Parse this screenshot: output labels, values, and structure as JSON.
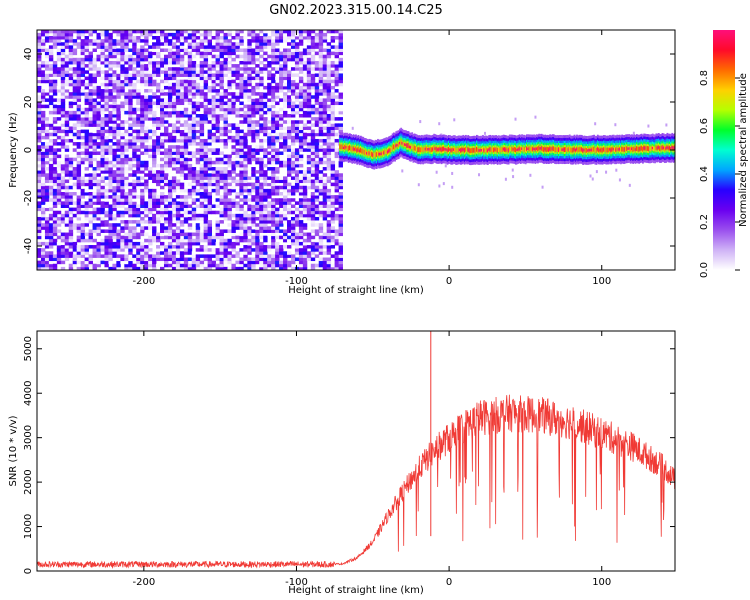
{
  "chart_data": [
    {
      "type": "heatmap",
      "title": "GN02.2023.315.00.14.C25",
      "xlabel": "Height of straight line (km)",
      "ylabel": "Frequency (Hz)",
      "xlim": [
        -270,
        148
      ],
      "ylim": [
        -50,
        50
      ],
      "x_ticks": [
        -200,
        -100,
        0,
        100
      ],
      "y_ticks": [
        -40,
        -20,
        0,
        20,
        40
      ],
      "grid": false,
      "colorbar": {
        "label": "Normalized spectral amplitude",
        "range": [
          0.0,
          1.0
        ],
        "ticks": [
          0.0,
          0.2,
          0.4,
          0.6,
          0.8
        ],
        "colormap": [
          "#ffffff",
          "#cfb2f6",
          "#9a4fee",
          "#6a00f0",
          "#2800ff",
          "#00a6ff",
          "#00ffd0",
          "#00ff2a",
          "#b6ff00",
          "#ffd000",
          "#ff6a00",
          "#ff0a2a",
          "#ff0f7a"
        ]
      },
      "noise_region_x": [
        -270,
        -72
      ],
      "noise_amplitude_range": [
        0.0,
        0.35
      ],
      "signal_track": {
        "x": [
          -72,
          -60,
          -50,
          -42,
          -32,
          -20,
          -10,
          0,
          30,
          60,
          90,
          120,
          148
        ],
        "frequency": [
          1.5,
          0,
          -2,
          -1,
          3,
          0,
          0.5,
          0,
          0,
          0.5,
          0,
          0.5,
          1
        ],
        "peak_amplitude": 1.0
      }
    },
    {
      "type": "line",
      "xlabel": "Height of straight line (km)",
      "ylabel": "SNR (10 * v/v)",
      "xlim": [
        -270,
        148
      ],
      "ylim": [
        0,
        5400
      ],
      "x_ticks": [
        -200,
        -100,
        0,
        100
      ],
      "y_ticks": [
        0,
        1000,
        2000,
        3000,
        4000,
        5000
      ],
      "grid": false,
      "series_color": "#f03a35",
      "envelope": {
        "x": [
          -270,
          -200,
          -100,
          -70,
          -60,
          -50,
          -40,
          -30,
          -20,
          -10,
          0,
          10,
          20,
          40,
          60,
          80,
          100,
          120,
          140,
          148
        ],
        "y": [
          140,
          140,
          140,
          160,
          300,
          650,
          1250,
          1800,
          2300,
          2700,
          3000,
          3250,
          3450,
          3550,
          3500,
          3350,
          3100,
          2800,
          2350,
          2050
        ]
      },
      "spike": {
        "x": -12,
        "y": 5400
      },
      "noise_floor": [
        80,
        220
      ]
    }
  ]
}
